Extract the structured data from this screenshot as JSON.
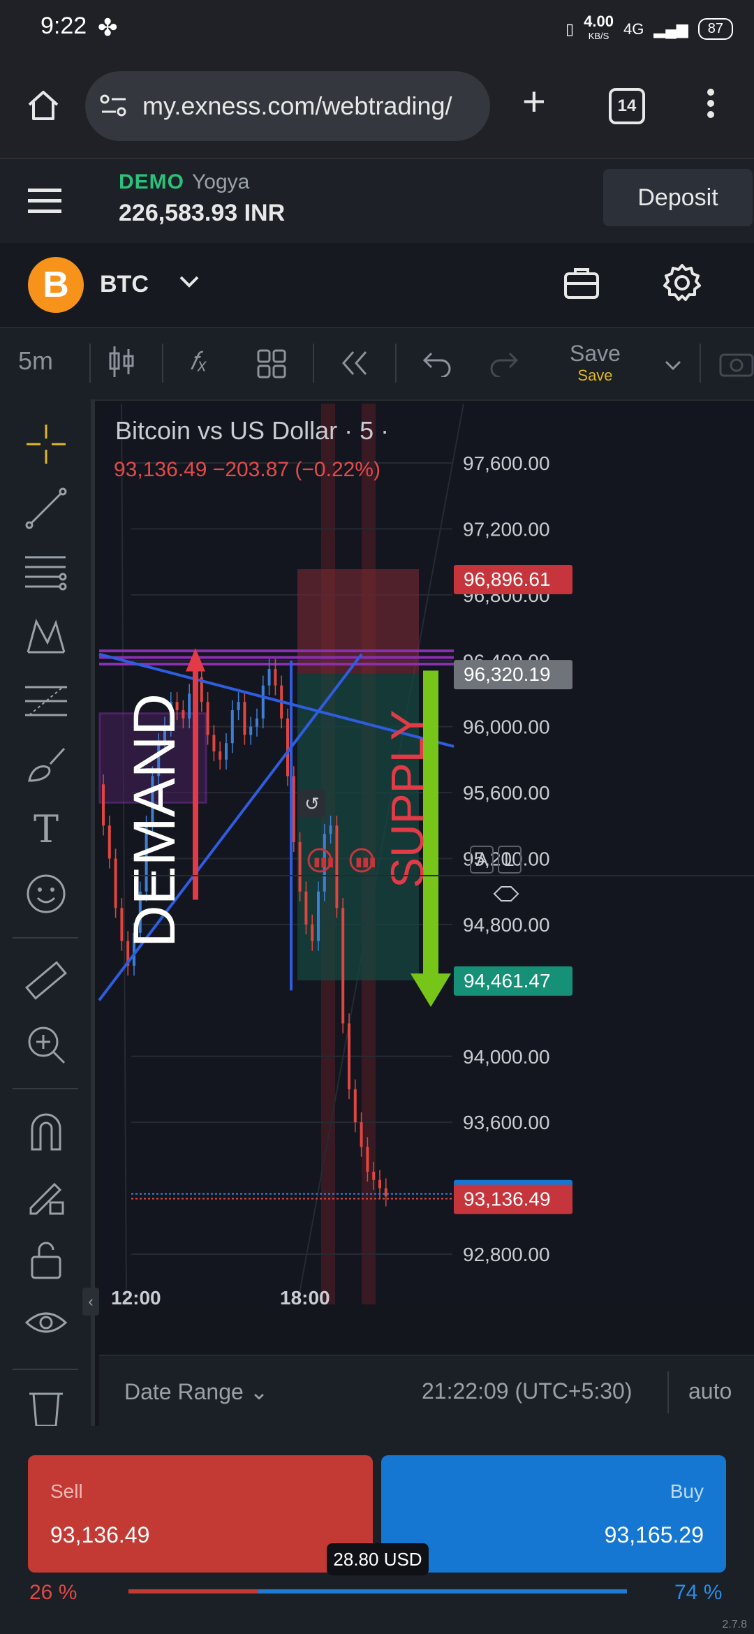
{
  "status_bar": {
    "time": "9:22",
    "speed": "4.00",
    "speed_unit": "KB/S",
    "network": "4G",
    "battery": "87"
  },
  "browser": {
    "url": "my.exness.com/webtrading/",
    "tab_count": "14"
  },
  "account": {
    "mode": "DEMO",
    "name": "Yogya",
    "balance": "226,583.93 INR",
    "deposit_label": "Deposit"
  },
  "symbol": {
    "logo": "B",
    "name": "BTC"
  },
  "toolbar": {
    "timeframe": "5m",
    "save_label": "Save",
    "save_sub": "Save"
  },
  "chart": {
    "title": "Bitcoin vs US Dollar · 5 ·",
    "quote": "93,136.49  −203.87 (−0.22%)",
    "price_ticks": [
      "97,600.00",
      "97,200.00",
      "96,800.00",
      "96,400.00",
      "96,000.00",
      "95,600.00",
      "95,200.00",
      "94,800.00",
      "94,000.00",
      "93,600.00",
      "92,800.00"
    ],
    "time_ticks": [
      "12:00",
      "18:00"
    ],
    "tags": {
      "stop": "96,896.61",
      "entry": "96,320.19",
      "target": "94,461.47",
      "ask": "93,165.29",
      "bid": "93,136.49"
    },
    "annotations": {
      "demand": "DEMAND",
      "supply": "SUPPLY"
    },
    "scale_buttons": [
      "A",
      "L"
    ],
    "colors": {
      "up": "#3d7fd6",
      "down": "#e0463f",
      "supply_zone": "#7a2a33",
      "target_zone": "#17463f",
      "trendline": "#2f5de0",
      "demand_zone": "#8a2fb0",
      "arrow_up": "#e23a46",
      "arrow_down": "#78c51a"
    }
  },
  "bottom_bar": {
    "date_range": "Date Range",
    "clock": "21:22:09 (UTC+5:30)",
    "scale_mode": "auto"
  },
  "trade": {
    "sell_label": "Sell",
    "sell_price": "93,136.49",
    "buy_label": "Buy",
    "buy_price": "93,165.29",
    "spread": "28.80 USD",
    "sell_pct_text": "26 %",
    "buy_pct_text": "74 %",
    "sell_fraction": 0.26,
    "version": "2.7.8"
  }
}
